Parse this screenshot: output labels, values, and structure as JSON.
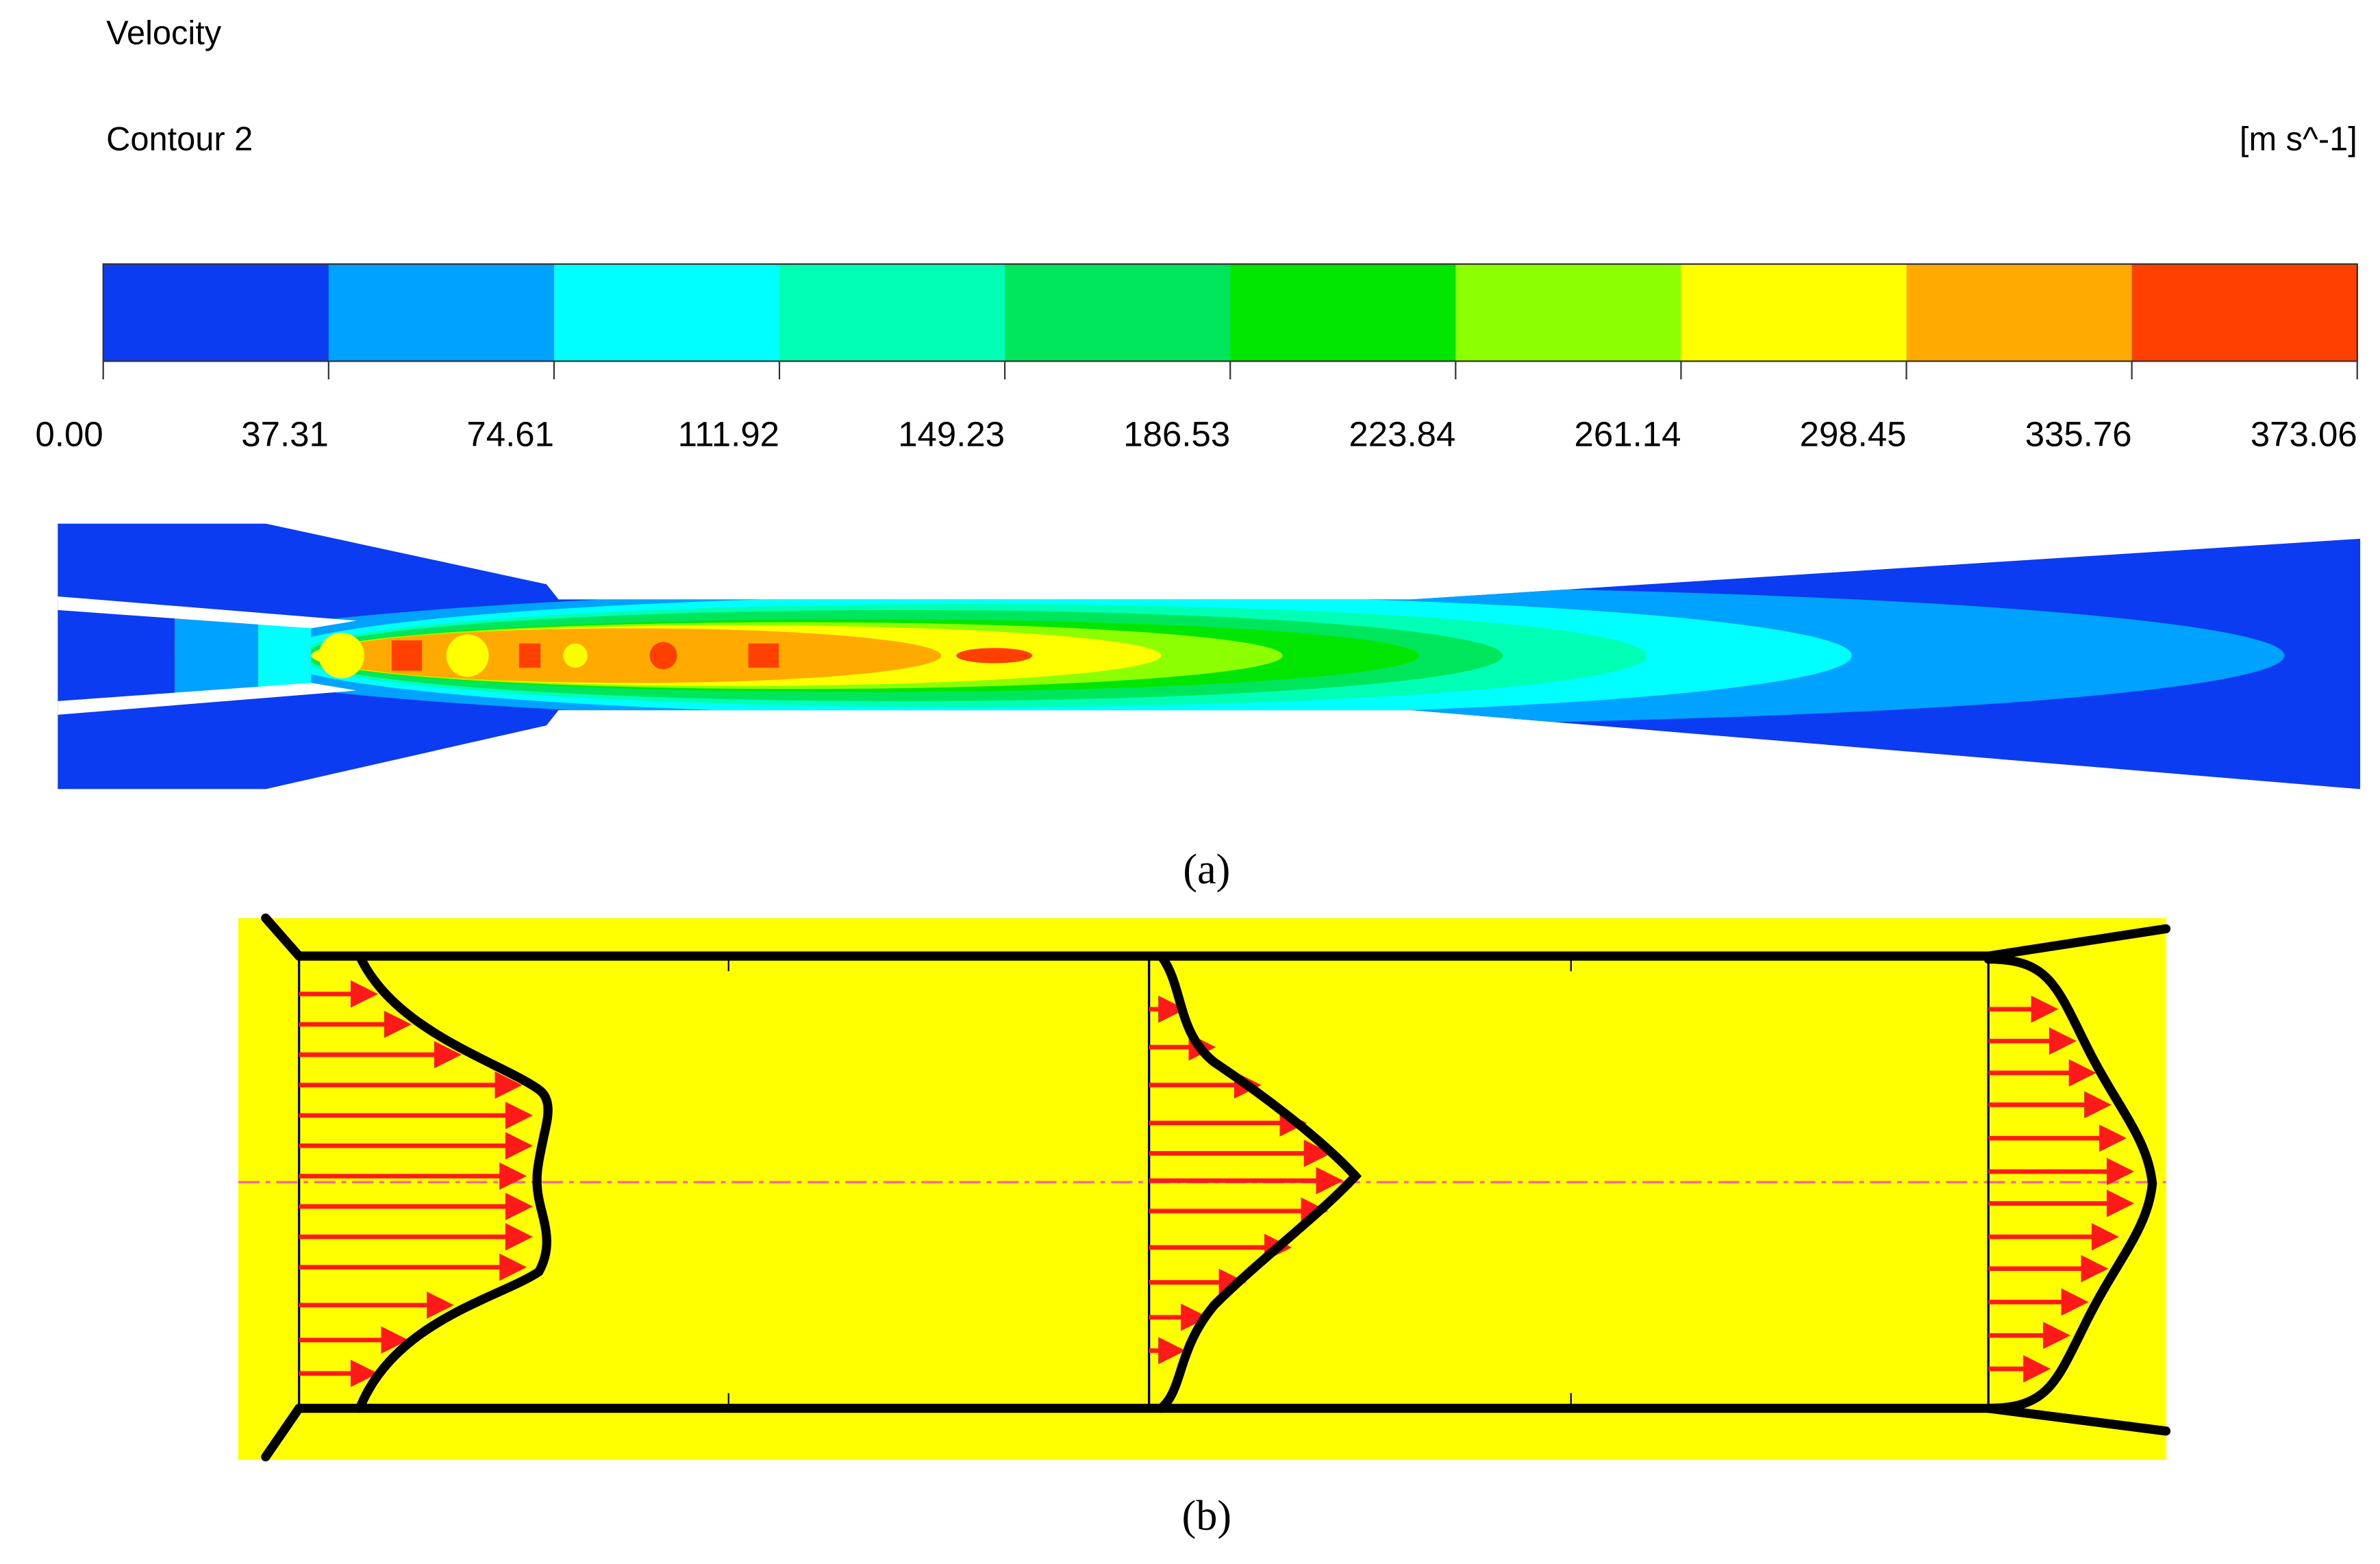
{
  "header": {
    "variable": "Velocity",
    "name": "Contour 2",
    "unit": "[m s^-1]"
  },
  "legend": {
    "colors": [
      "#0b3cf2",
      "#00a2ff",
      "#00ffff",
      "#00ffb4",
      "#00e65c",
      "#00e600",
      "#8cff00",
      "#ffff00",
      "#ffaa00",
      "#ff4000"
    ],
    "labels": [
      "0.00",
      "37.31",
      "74.61",
      "111.92",
      "149.23",
      "186.53",
      "223.84",
      "261.14",
      "298.45",
      "335.76",
      "373.06"
    ]
  },
  "captions": [
    "(a)",
    "(b)"
  ]
}
